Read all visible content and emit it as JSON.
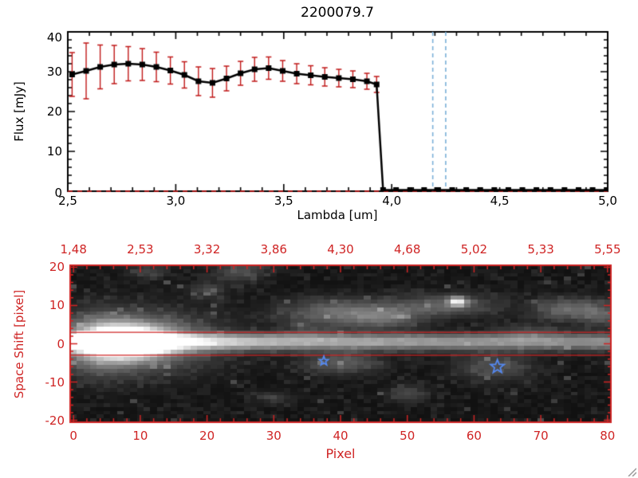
{
  "title": "2200079.7",
  "colors": {
    "background": "#ffffff",
    "axis_black": "#000000",
    "axis_red": "#cf2424",
    "error_red": "#c01818",
    "zero_line_red": "#cc1111",
    "dashed_blue": "#7ab0d8",
    "star_blue": "#5588ee"
  },
  "chart_data": [
    {
      "type": "line",
      "title": "2200079.7",
      "xlabel": "Lambda [um]",
      "ylabel": "Flux [mJy]",
      "xlim": [
        2.5,
        5.0
      ],
      "ylim": [
        0,
        40
      ],
      "grid": false,
      "x_ticks": {
        "values": [
          2.5,
          3.0,
          3.5,
          4.0,
          4.5,
          5.0
        ],
        "labels": [
          "2,5",
          "3,0",
          "3,5",
          "4,0",
          "4,5",
          "5,0"
        ]
      },
      "y_ticks": {
        "values": [
          0,
          10,
          20,
          30,
          40
        ],
        "labels": [
          "0",
          "10",
          "20",
          "30",
          "40"
        ]
      },
      "series": [
        {
          "name": "spectrum",
          "color": "#000000",
          "marker": "filled-square",
          "error_color": "#c01818",
          "x": [
            2.52,
            2.585,
            2.65,
            2.715,
            2.78,
            2.845,
            2.91,
            2.975,
            3.04,
            3.105,
            3.17,
            3.235,
            3.3,
            3.365,
            3.43,
            3.495,
            3.56,
            3.625,
            3.69,
            3.755,
            3.82,
            3.885,
            3.93,
            3.96,
            4.02,
            4.085,
            4.15,
            4.215,
            4.28,
            4.345,
            4.41,
            4.475,
            4.54,
            4.605,
            4.67,
            4.735,
            4.8,
            4.865,
            4.93,
            4.995
          ],
          "y": [
            29.3,
            30.2,
            31.2,
            31.8,
            32.0,
            31.8,
            31.2,
            30.3,
            29.2,
            27.6,
            27.2,
            28.3,
            29.6,
            30.6,
            30.9,
            30.2,
            29.5,
            29.1,
            28.7,
            28.4,
            28.1,
            27.6,
            26.8,
            0.3,
            0.3,
            0.3,
            0.3,
            0.3,
            0.3,
            0.3,
            0.3,
            0.3,
            0.3,
            0.3,
            0.3,
            0.3,
            0.3,
            0.3,
            0.3,
            0.3
          ],
          "yerr": [
            5.5,
            7.0,
            5.5,
            4.8,
            4.3,
            4.0,
            3.7,
            3.4,
            3.3,
            3.6,
            3.6,
            3.1,
            3.0,
            3.0,
            2.8,
            2.6,
            2.5,
            2.4,
            2.3,
            2.2,
            2.1,
            2.0,
            2.0,
            0.4,
            0.4,
            0.4,
            0.4,
            0.4,
            0.4,
            0.4,
            0.4,
            0.4,
            0.4,
            0.4,
            0.4,
            0.4,
            0.4,
            0.4,
            0.4,
            0.4
          ]
        }
      ],
      "vlines": {
        "x": [
          4.19,
          4.25
        ],
        "color": "#7ab0d8",
        "style": "dashed"
      },
      "hlines": {
        "y": [
          0
        ],
        "color": "#cc1111",
        "style": "dashed"
      }
    },
    {
      "type": "heatmap",
      "xlabel": "Pixel",
      "ylabel": "Space Shift [pixel]",
      "xlim": [
        0,
        80
      ],
      "ylim": [
        -20,
        20
      ],
      "x_ticks": {
        "values": [
          0,
          10,
          20,
          30,
          40,
          50,
          60,
          70,
          80
        ],
        "labels": [
          "0",
          "10",
          "20",
          "30",
          "40",
          "50",
          "60",
          "70",
          "80"
        ]
      },
      "y_ticks": {
        "values": [
          20,
          10,
          0,
          -10,
          -20
        ],
        "labels": [
          "20",
          "10",
          "0",
          "-10",
          "-20"
        ]
      },
      "top_axis_tick_labels": [
        "1,48",
        "2,53",
        "3,32",
        "3,86",
        "4,30",
        "4,68",
        "5,02",
        "5,33",
        "5,55"
      ],
      "aperture_lines_y": [
        3,
        -3
      ],
      "markers": [
        {
          "shape": "star",
          "x": 37.5,
          "y": -4.5,
          "size": 6,
          "color": "#5588ee"
        },
        {
          "shape": "star",
          "x": 63.5,
          "y": -6,
          "size": 9,
          "color": "#5588ee"
        }
      ],
      "image_model": {
        "nx": 81,
        "ny": 41,
        "base": 0.04,
        "noise": 0.1,
        "seed": 12345,
        "gamma": 0.85,
        "trace": {
          "center": 0.5,
          "sigma": 1.4,
          "amp_floor": 0.42,
          "amp_peak": 0.58,
          "decay": 30
        },
        "blobs": [
          [
            8,
            0.5,
            4,
            2.6,
            1.4
          ],
          [
            9,
            0.5,
            8,
            5,
            0.45
          ],
          [
            4,
            0,
            3.5,
            5,
            0.3
          ],
          [
            40,
            8,
            6,
            2.5,
            0.32
          ],
          [
            47,
            7,
            3.5,
            2,
            0.22
          ],
          [
            56,
            10,
            5,
            2,
            0.26
          ],
          [
            57.5,
            11,
            0.9,
            0.8,
            0.75
          ],
          [
            74,
            9,
            3.5,
            2,
            0.3
          ],
          [
            79,
            7.5,
            2,
            2,
            0.22
          ],
          [
            40,
            -5,
            4,
            2,
            0.24
          ],
          [
            63,
            -6,
            4,
            2.5,
            0.2
          ],
          [
            50,
            -13,
            2,
            1.5,
            0.18
          ],
          [
            30,
            -14,
            2,
            1,
            0.13
          ],
          [
            20,
            14,
            2,
            1.5,
            0.14
          ],
          [
            25,
            19,
            2.5,
            2,
            0.2
          ],
          [
            11,
            19,
            2,
            1.5,
            0.15
          ],
          [
            68,
            3,
            3,
            1.5,
            0.15
          ],
          [
            35,
            3,
            2,
            1.2,
            0.12
          ]
        ]
      }
    }
  ]
}
